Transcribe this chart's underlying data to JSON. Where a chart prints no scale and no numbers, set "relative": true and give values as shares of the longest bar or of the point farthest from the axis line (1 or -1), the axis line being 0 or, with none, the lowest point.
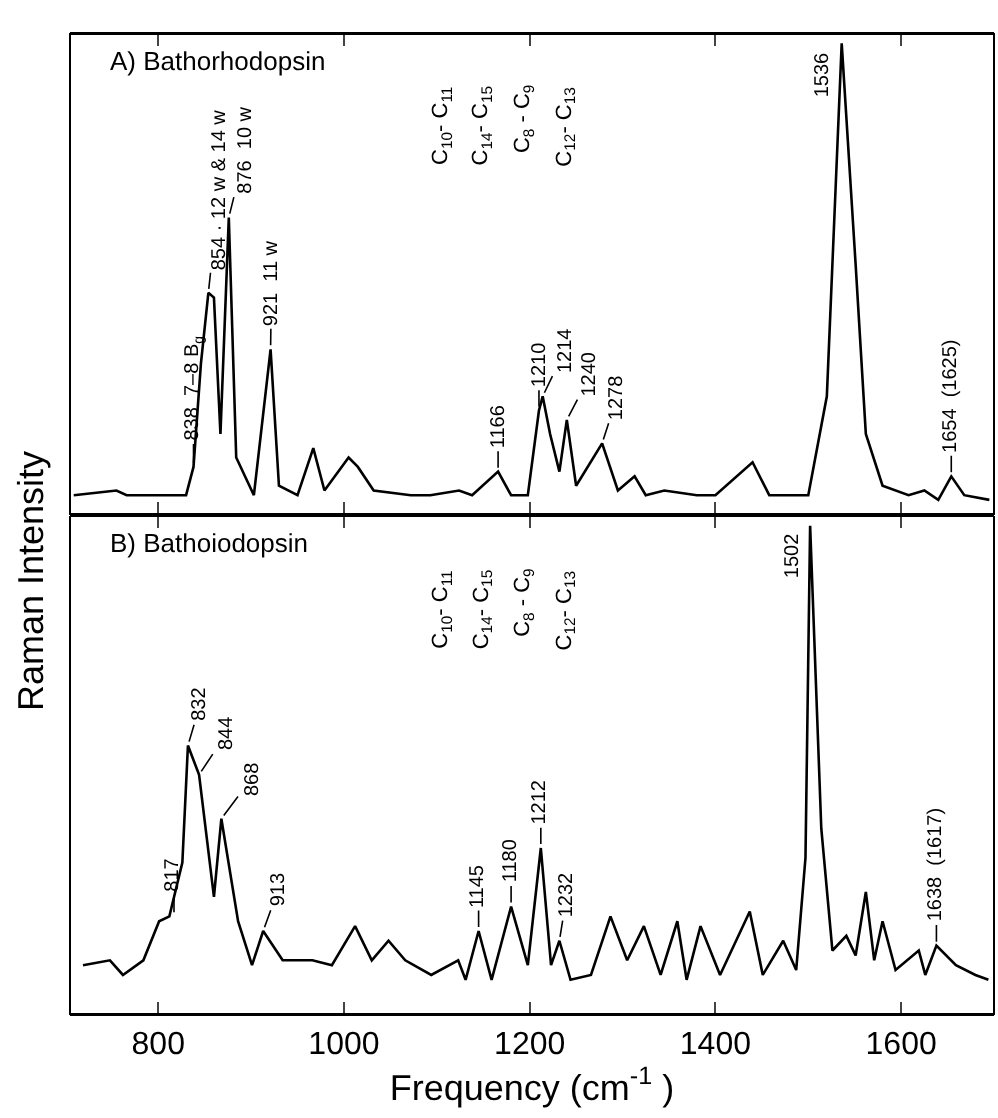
{
  "chart_data": [
    {
      "type": "line",
      "title": "A) Bathorhodopsin",
      "relative": true,
      "xlim": [
        705,
        1700
      ],
      "xticks": [
        800,
        1000,
        1200,
        1400,
        1600
      ],
      "tick_labels": false,
      "grid": false,
      "marker": "none",
      "line_style": "solid",
      "series": [
        {
          "color": "#000000",
          "x": [
            709,
            755,
            766,
            801,
            830,
            838,
            846,
            854,
            860,
            867,
            876,
            884,
            903,
            921,
            930,
            950,
            967,
            979,
            1005,
            1015,
            1032,
            1072,
            1093,
            1124,
            1138,
            1166,
            1180,
            1198,
            1210,
            1214,
            1222,
            1232,
            1240,
            1250,
            1278,
            1295,
            1313,
            1325,
            1345,
            1380,
            1400,
            1440,
            1458,
            1500,
            1520,
            1536,
            1551,
            1562,
            1580,
            1608,
            1625,
            1640,
            1654,
            1668,
            1695
          ],
          "values": [
            0.04,
            0.05,
            0.04,
            0.04,
            0.04,
            0.1,
            0.32,
            0.47,
            0.46,
            0.17,
            0.63,
            0.12,
            0.04,
            0.35,
            0.06,
            0.04,
            0.14,
            0.05,
            0.12,
            0.1,
            0.05,
            0.04,
            0.04,
            0.05,
            0.04,
            0.09,
            0.04,
            0.04,
            0.22,
            0.25,
            0.17,
            0.09,
            0.2,
            0.06,
            0.15,
            0.05,
            0.08,
            0.04,
            0.05,
            0.04,
            0.04,
            0.11,
            0.04,
            0.04,
            0.25,
            1,
            0.53,
            0.17,
            0.06,
            0.04,
            0.05,
            0.03,
            0.08,
            0.04,
            0.03
          ]
        }
      ],
      "annotations": [
        {
          "text": "838  7–8 B$_{g}$",
          "x": 838,
          "y": 0.1
        },
        {
          "text": "854 · 12 w & 14 w",
          "x": 854,
          "y": 0.47
        },
        {
          "text": "876  10 w",
          "x": 876,
          "y": 0.63
        },
        {
          "text": "921  11 w",
          "x": 921,
          "y": 0.35
        },
        {
          "text": "1166",
          "x": 1166,
          "y": 0.09
        },
        {
          "text": "1210",
          "x": 1210,
          "y": 0.22
        },
        {
          "text": "1214",
          "x": 1214,
          "y": 0.25
        },
        {
          "text": "1240",
          "x": 1240,
          "y": 0.2
        },
        {
          "text": "1278",
          "x": 1278,
          "y": 0.15
        },
        {
          "text": "1536",
          "x": 1536,
          "y": 1
        },
        {
          "text": "1654  (1625)",
          "x": 1654,
          "y": 0.08
        },
        "C$_{10}$- C$_{11}$",
        "C$_{14}$- C$_{15}$",
        "C$_{8}$ - C$_{9}$",
        "C$_{12}$- C$_{13}$"
      ]
    },
    {
      "type": "line",
      "title": "B) Bathoiodopsin",
      "xlabel": "Frequency (cm$^{-1}$ )",
      "ylabel": "Raman Intensity",
      "relative": true,
      "xlim": [
        705,
        1700
      ],
      "xticks": [
        800,
        1000,
        1200,
        1400,
        1600
      ],
      "tick_labels": "x",
      "grid": false,
      "marker": "none",
      "line_style": "solid",
      "series": [
        {
          "color": "#000000",
          "x": [
            719,
            748,
            762,
            784,
            801,
            812,
            826,
            832,
            844,
            860,
            868,
            886,
            901,
            913,
            934,
            966,
            987,
            1012,
            1030,
            1048,
            1066,
            1094,
            1123,
            1131,
            1145,
            1159,
            1180,
            1198,
            1212,
            1223,
            1232,
            1244,
            1266,
            1287,
            1305,
            1323,
            1341,
            1359,
            1369,
            1384,
            1405,
            1437,
            1451,
            1473,
            1487,
            1497,
            1502,
            1514,
            1526,
            1541,
            1551,
            1562,
            1571,
            1580,
            1594,
            1619,
            1626,
            1638,
            1659,
            1680,
            1694
          ],
          "values": [
            0.1,
            0.11,
            0.08,
            0.11,
            0.19,
            0.2,
            0.31,
            0.55,
            0.49,
            0.24,
            0.4,
            0.19,
            0.1,
            0.17,
            0.11,
            0.11,
            0.1,
            0.18,
            0.11,
            0.15,
            0.11,
            0.08,
            0.11,
            0.07,
            0.17,
            0.07,
            0.22,
            0.1,
            0.34,
            0.1,
            0.15,
            0.07,
            0.08,
            0.2,
            0.11,
            0.18,
            0.08,
            0.19,
            0.07,
            0.18,
            0.08,
            0.21,
            0.08,
            0.15,
            0.09,
            0.32,
            1,
            0.38,
            0.13,
            0.16,
            0.12,
            0.25,
            0.11,
            0.19,
            0.09,
            0.13,
            0.08,
            0.14,
            0.1,
            0.08,
            0.07
          ]
        }
      ],
      "annotations": [
        {
          "text": "817",
          "x": 817,
          "y": 0.2
        },
        {
          "text": "832",
          "x": 832,
          "y": 0.55
        },
        {
          "text": "844",
          "x": 844,
          "y": 0.49
        },
        {
          "text": "868",
          "x": 868,
          "y": 0.4
        },
        {
          "text": "913",
          "x": 913,
          "y": 0.17
        },
        {
          "text": "1145",
          "x": 1145,
          "y": 0.17
        },
        {
          "text": "1180",
          "x": 1180,
          "y": 0.22
        },
        {
          "text": "1212",
          "x": 1212,
          "y": 0.34
        },
        {
          "text": "1232",
          "x": 1232,
          "y": 0.15
        },
        {
          "text": "1502",
          "x": 1502,
          "y": 1
        },
        {
          "text": "1638  (1617)",
          "x": 1638,
          "y": 0.14
        },
        "C$_{10}$- C$_{11}$",
        "C$_{14}$- C$_{15}$",
        "C$_{8}$ - C$_{9}$",
        "C$_{12}$- C$_{13}$"
      ]
    }
  ]
}
